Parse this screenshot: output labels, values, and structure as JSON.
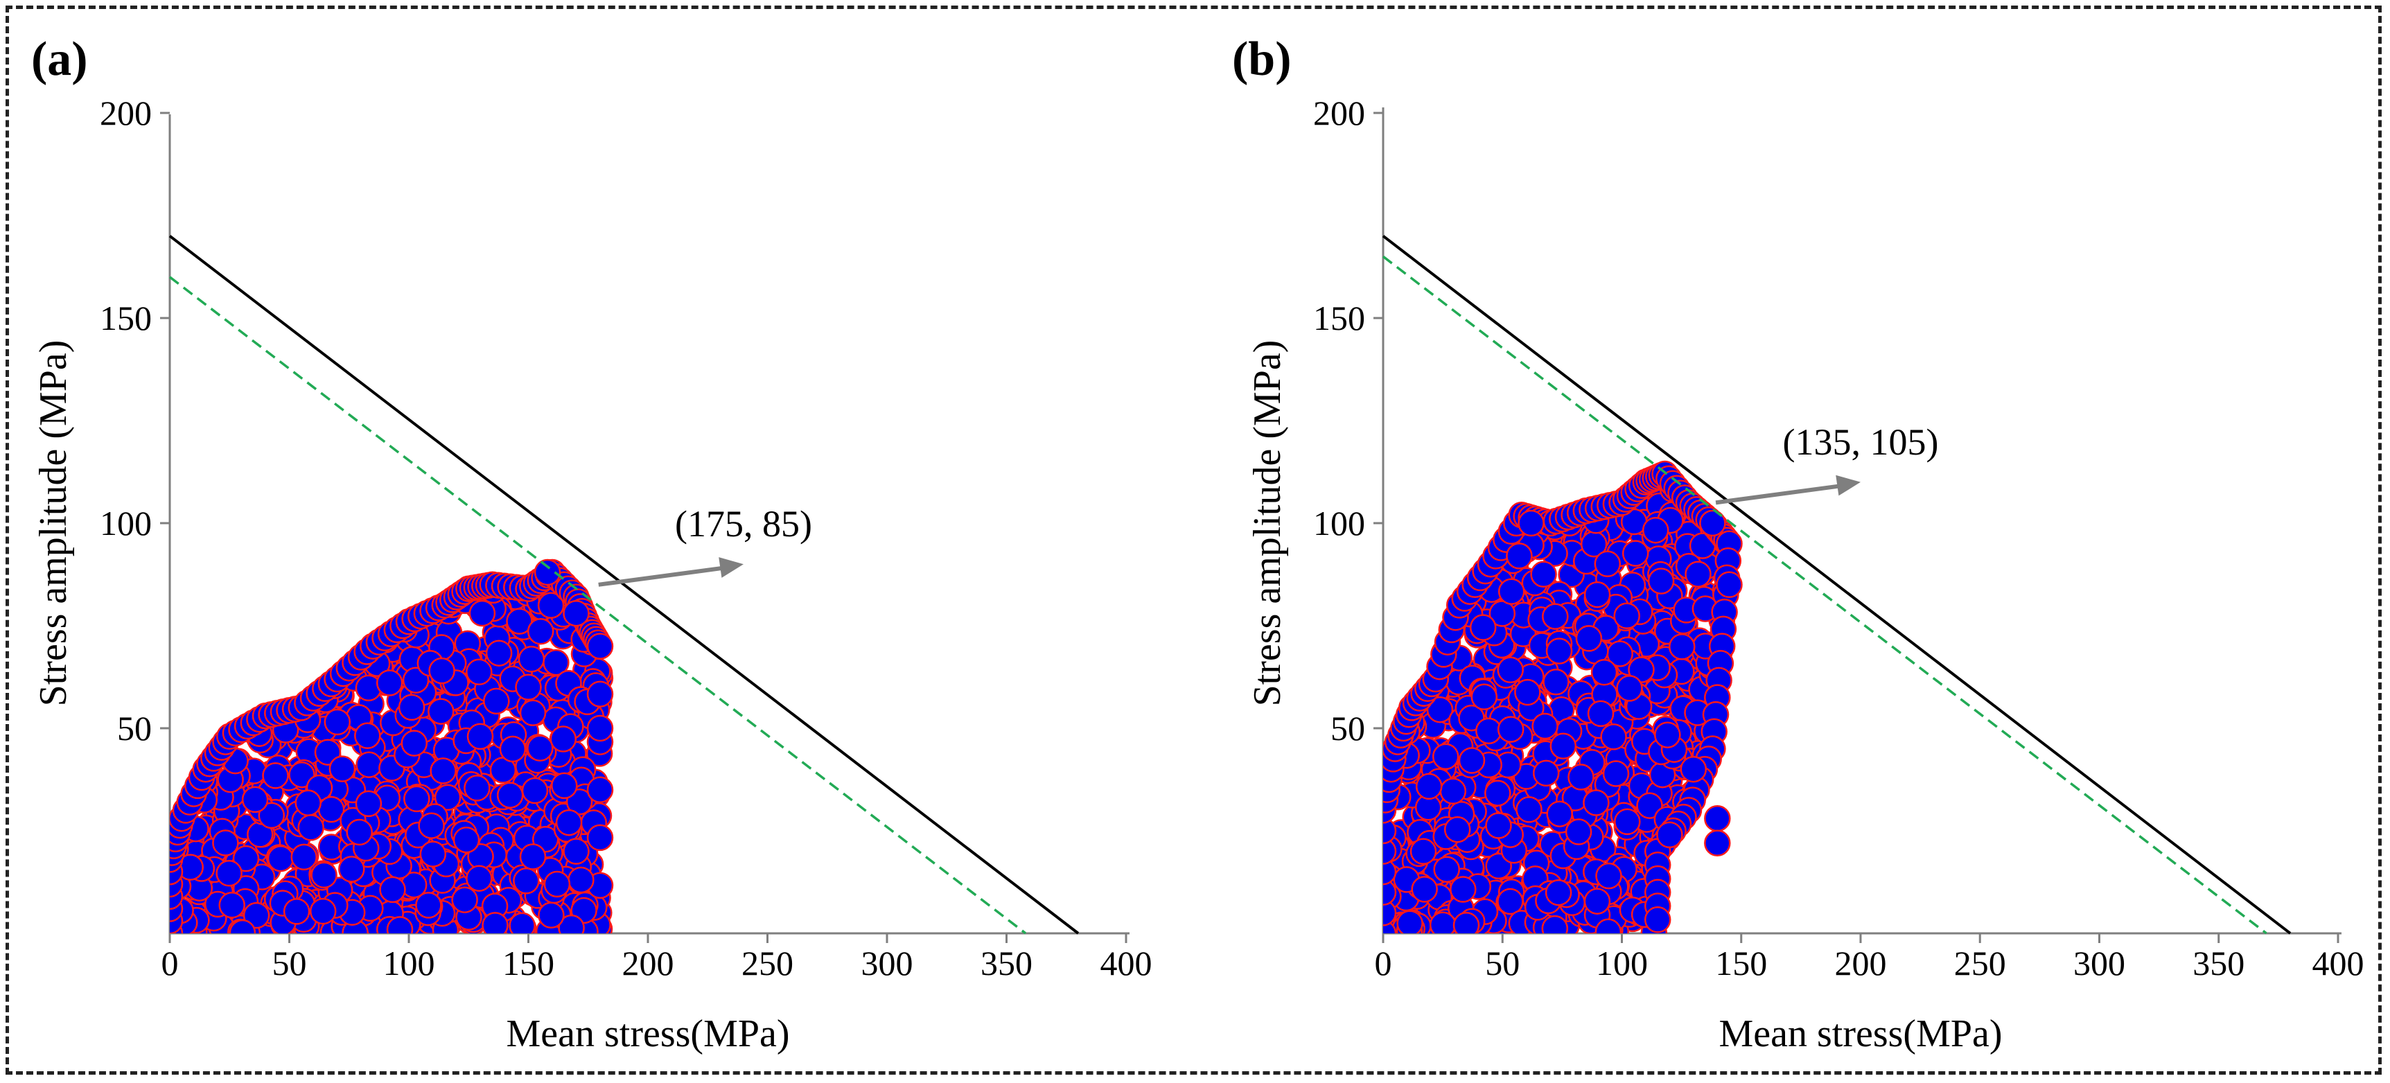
{
  "colors": {
    "axis": "#7f7f7f",
    "black_line": "#000000",
    "green_line": "#22aa55",
    "marker_fill": "#0000ee",
    "marker_edge": "#ff1a1a",
    "arrow": "#7f7f7f",
    "frame": "#222222"
  },
  "chart_data": [
    {
      "type": "scatter",
      "panel_label": "(a)",
      "xlabel": "Mean stress(MPa)",
      "ylabel": "Stress amplitude (MPa)",
      "xlim": [
        0,
        400
      ],
      "ylim": [
        0,
        200
      ],
      "xticks": [
        0,
        50,
        100,
        150,
        200,
        250,
        300,
        350,
        400
      ],
      "yticks": [
        50,
        100,
        150,
        200
      ],
      "lines": [
        {
          "name": "black-limit-line",
          "style": "solid",
          "color": "#000000",
          "points": [
            [
              0,
              170
            ],
            [
              380,
              0
            ]
          ]
        },
        {
          "name": "green-limit-line",
          "style": "dashed",
          "color": "#22aa55",
          "points": [
            [
              0,
              160
            ],
            [
              358,
              0
            ]
          ]
        }
      ],
      "annotation": {
        "text": "(175, 85)",
        "point": [
          175,
          85
        ],
        "arrow_to": [
          240,
          90
        ]
      },
      "cluster": {
        "max_x": 180,
        "max_y": 90,
        "count": 900,
        "envelope": [
          [
            0,
            0
          ],
          [
            0,
            18
          ],
          [
            5,
            28
          ],
          [
            15,
            40
          ],
          [
            25,
            48
          ],
          [
            40,
            53
          ],
          [
            55,
            55
          ],
          [
            70,
            62
          ],
          [
            85,
            70
          ],
          [
            100,
            76
          ],
          [
            115,
            80
          ],
          [
            125,
            84
          ],
          [
            135,
            85
          ],
          [
            150,
            84
          ],
          [
            160,
            88
          ],
          [
            170,
            82
          ],
          [
            175,
            75
          ],
          [
            180,
            70
          ],
          [
            180,
            0
          ]
        ],
        "outliers": [
          [
            158,
            88
          ],
          [
            180,
            50
          ],
          [
            170,
            78
          ],
          [
            165,
            36
          ],
          [
            170,
            20
          ],
          [
            172,
            13
          ],
          [
            162,
            12
          ],
          [
            167,
            27
          ],
          [
            150,
            60
          ]
        ]
      }
    },
    {
      "type": "scatter",
      "panel_label": "(b)",
      "xlabel": "Mean stress(MPa)",
      "ylabel": "Stress amplitude (MPa)",
      "xlim": [
        0,
        400
      ],
      "ylim": [
        0,
        200
      ],
      "xticks": [
        0,
        50,
        100,
        150,
        200,
        250,
        300,
        350,
        400
      ],
      "yticks": [
        50,
        100,
        150,
        200
      ],
      "lines": [
        {
          "name": "black-limit-line",
          "style": "solid",
          "color": "#000000",
          "points": [
            [
              0,
              170
            ],
            [
              380,
              0
            ]
          ]
        },
        {
          "name": "green-limit-line",
          "style": "dashed",
          "color": "#22aa55",
          "points": [
            [
              0,
              165
            ],
            [
              370,
              0
            ]
          ]
        }
      ],
      "annotation": {
        "text": "(135, 105)",
        "point": [
          135,
          105
        ],
        "arrow_to": [
          200,
          110
        ]
      },
      "cluster": {
        "max_x": 145,
        "max_y": 112,
        "count": 900,
        "envelope": [
          [
            0,
            0
          ],
          [
            0,
            30
          ],
          [
            5,
            45
          ],
          [
            12,
            55
          ],
          [
            22,
            62
          ],
          [
            32,
            80
          ],
          [
            45,
            90
          ],
          [
            58,
            102
          ],
          [
            70,
            100
          ],
          [
            85,
            103
          ],
          [
            100,
            105
          ],
          [
            110,
            110
          ],
          [
            118,
            112
          ],
          [
            128,
            105
          ],
          [
            138,
            100
          ],
          [
            145,
            95
          ],
          [
            142,
            70
          ],
          [
            138,
            45
          ],
          [
            128,
            30
          ],
          [
            115,
            20
          ],
          [
            115,
            0
          ]
        ],
        "outliers": [
          [
            140,
            28
          ],
          [
            140,
            22
          ],
          [
            145,
            85
          ],
          [
            120,
            24
          ],
          [
            130,
            40
          ],
          [
            138,
            100
          ],
          [
            62,
            100
          ],
          [
            57,
            92
          ]
        ]
      }
    }
  ]
}
